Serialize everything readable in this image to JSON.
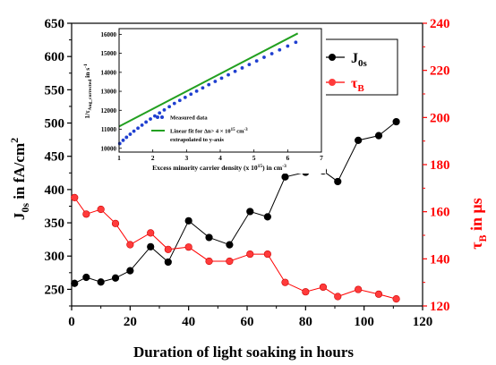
{
  "chart_data": [
    {
      "type": "line",
      "xlabel": "Duration of light soaking in hours",
      "ylabel_left": {
        "main": "J",
        "sub": "0s",
        "rest": " in fA/cm",
        "sup": "2"
      },
      "ylabel_right": {
        "main": "τ",
        "sub": "B",
        "rest": " in μs"
      },
      "xlim": [
        0,
        120
      ],
      "x_ticks": [
        "0",
        "20",
        "40",
        "60",
        "80",
        "100",
        "120"
      ],
      "ylim_left": [
        225,
        650
      ],
      "y_ticks_left": [
        "250",
        "300",
        "350",
        "400",
        "450",
        "500",
        "550",
        "600",
        "650"
      ],
      "ylim_right": [
        120,
        240
      ],
      "y_ticks_right": [
        "120",
        "140",
        "160",
        "180",
        "200",
        "220",
        "240"
      ],
      "legend_position": "top-right",
      "series": [
        {
          "name": {
            "main": "J",
            "sub": "0s"
          },
          "axis": "left",
          "color": "#000000",
          "x": [
            1,
            5,
            10,
            15,
            20,
            27,
            33,
            40,
            47,
            54,
            61,
            67,
            73,
            80,
            86,
            91,
            98,
            105,
            111
          ],
          "y": [
            259,
            268,
            261,
            267,
            278,
            314,
            291,
            353,
            328,
            317,
            367,
            359,
            419,
            426,
            428,
            412,
            474,
            481,
            502
          ]
        },
        {
          "name": {
            "main": "τ",
            "sub": "B"
          },
          "axis": "right",
          "color": "#ff0000",
          "x": [
            1,
            5,
            10,
            15,
            20,
            27,
            33,
            40,
            47,
            54,
            61,
            67,
            73,
            80,
            86,
            91,
            98,
            105,
            111
          ],
          "y": [
            166,
            159,
            161,
            155,
            146,
            151,
            144,
            145,
            139,
            139,
            142,
            142,
            130,
            126,
            128,
            124,
            127,
            125,
            123
          ]
        }
      ]
    },
    {
      "type": "scatter",
      "xlabel": {
        "pre": "Excess minority carrier density (x 10",
        "sup": "15",
        "post": ") in cm",
        "sup2": "-3"
      },
      "ylabel": {
        "pre": "1/τ",
        "sub": "Aug_corrected",
        "post": " in s",
        "sup": "-1"
      },
      "xlim": [
        1,
        7
      ],
      "x_ticks": [
        "1",
        "2",
        "3",
        "4",
        "5",
        "6",
        "7"
      ],
      "ylim": [
        9800,
        16300
      ],
      "y_ticks": [
        "10000",
        "11000",
        "12000",
        "13000",
        "14000",
        "15000",
        "16000"
      ],
      "legend": {
        "measured": "Measured data",
        "fit_line1": {
          "pre": "Linear fit for Δn> 4 × 10",
          "sup": "15",
          "post": " cm",
          "sup2": "-3"
        },
        "fit_line2": "extrapolated to y-axis"
      },
      "measured_x": [
        1.02,
        1.12,
        1.22,
        1.33,
        1.44,
        1.56,
        1.68,
        1.8,
        1.93,
        2.06,
        2.2,
        2.34,
        2.49,
        2.64,
        2.8,
        2.96,
        3.13,
        3.3,
        3.48,
        3.66,
        3.85,
        4.04,
        4.24,
        4.44,
        4.65,
        4.86,
        5.08,
        5.3,
        5.53,
        5.76,
        6.0,
        6.24
      ],
      "measured_y": [
        10250,
        10420,
        10580,
        10740,
        10900,
        11060,
        11220,
        11380,
        11540,
        11700,
        11860,
        12020,
        12190,
        12360,
        12520,
        12680,
        12850,
        13010,
        13180,
        13350,
        13520,
        13690,
        13870,
        14050,
        14230,
        14410,
        14600,
        14790,
        14980,
        15180,
        15380,
        15580
      ],
      "fit": {
        "x": [
          1,
          6.3
        ],
        "y": [
          11150,
          16050
        ],
        "color": "#22a020"
      },
      "marker_color": "#1f3fd0"
    }
  ]
}
